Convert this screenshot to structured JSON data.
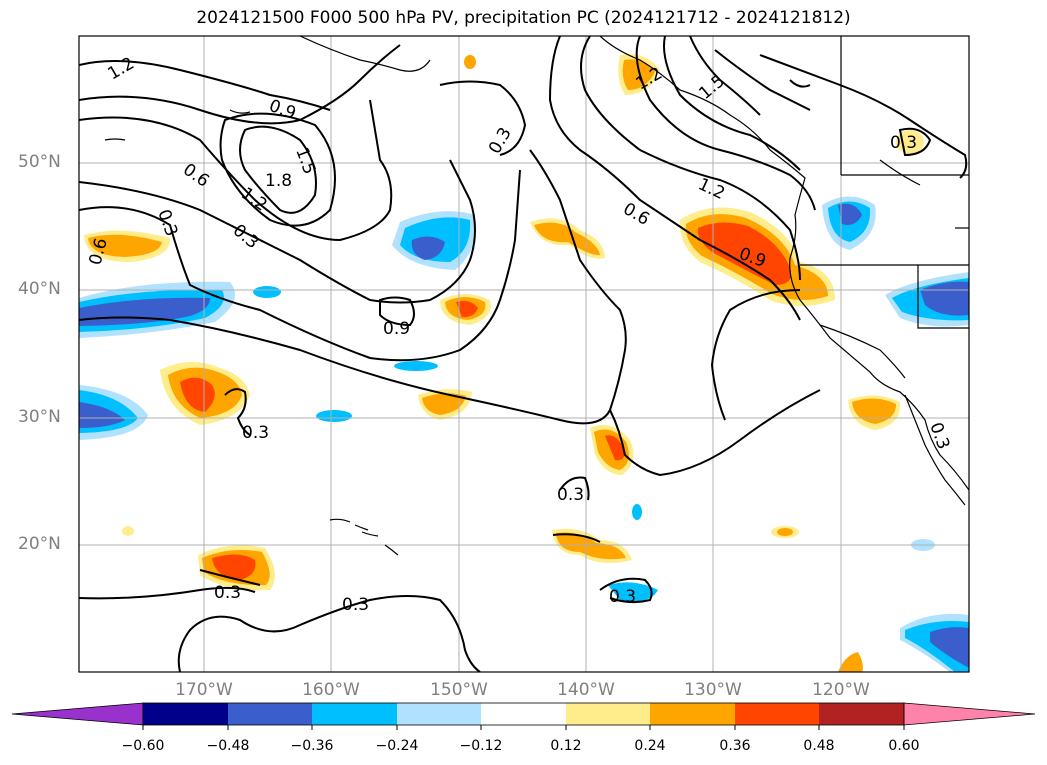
{
  "title": "2024121500 F000 500 hPa PV, precipitation PC (2024121712 - 2024121812)",
  "lat_labels": [
    "50°N",
    "40°N",
    "30°N",
    "20°N"
  ],
  "lon_labels": [
    "170°W",
    "160°W",
    "150°W",
    "140°W",
    "130°W",
    "120°W"
  ],
  "colorbar": {
    "ticks": [
      "−0.60",
      "−0.48",
      "−0.36",
      "−0.24",
      "−0.12",
      "0.12",
      "0.24",
      "0.36",
      "0.48",
      "0.60"
    ],
    "colors": [
      "#9932cc",
      "#00008b",
      "#3a5fcd",
      "#00bfff",
      "#b0e2ff",
      "#ffffff",
      "#ffec8b",
      "#ffa500",
      "#ff4500",
      "#b22222",
      "#ff82ab"
    ]
  },
  "contour_labels": [
    "1.2",
    "0.9",
    "1.5",
    "1.8",
    "0.6",
    "1.2",
    "0.3",
    "0.3",
    "0.6",
    "0.3",
    "0.9",
    "0.3",
    "0.3",
    "1.2",
    "0.6",
    "0.9",
    "0.3",
    "0.3",
    "0.3",
    "0.3",
    "0.3",
    "1.2",
    "1.5"
  ]
}
